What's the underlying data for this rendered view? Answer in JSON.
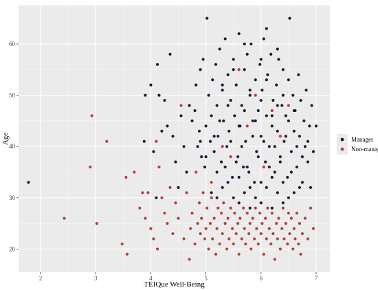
{
  "chart_data": {
    "type": "scatter",
    "xlabel": "TEIQue Well-Being",
    "ylabel": "Age",
    "xlim": [
      1.6,
      7.25
    ],
    "ylim": [
      15.5,
      67.5
    ],
    "x_ticks": [
      2,
      3,
      4,
      5,
      6,
      7
    ],
    "y_ticks": [
      20,
      30,
      40,
      50,
      60
    ],
    "x_tick_labels": [
      "2",
      "3",
      "4",
      "5",
      "6",
      "7"
    ],
    "y_tick_labels": [
      "20",
      "30",
      "40",
      "50",
      "60"
    ],
    "grid": true,
    "legend_position": "right",
    "background_color": "#ebebeb",
    "grid_color": "#ffffff",
    "series": [
      {
        "name": "Manager",
        "color": "#1c1c3a",
        "points": [
          [
            1.78,
            33
          ],
          [
            3.88,
            41
          ],
          [
            3.9,
            50
          ],
          [
            4.0,
            52
          ],
          [
            4.05,
            39
          ],
          [
            4.1,
            30
          ],
          [
            4.12,
            56
          ],
          [
            4.15,
            50
          ],
          [
            4.2,
            43
          ],
          [
            4.25,
            49
          ],
          [
            4.3,
            44
          ],
          [
            4.35,
            58
          ],
          [
            4.4,
            42
          ],
          [
            4.45,
            37
          ],
          [
            4.5,
            32
          ],
          [
            4.55,
            46
          ],
          [
            4.6,
            40
          ],
          [
            4.65,
            35
          ],
          [
            4.7,
            48
          ],
          [
            4.75,
            45
          ],
          [
            4.8,
            47
          ],
          [
            4.82,
            52
          ],
          [
            4.85,
            40
          ],
          [
            4.88,
            43
          ],
          [
            4.9,
            55
          ],
          [
            4.92,
            38
          ],
          [
            4.95,
            57
          ],
          [
            4.98,
            36
          ],
          [
            5.0,
            44
          ],
          [
            5.02,
            65
          ],
          [
            5.05,
            50
          ],
          [
            5.08,
            41
          ],
          [
            5.1,
            46
          ],
          [
            5.12,
            53
          ],
          [
            5.15,
            39
          ],
          [
            5.18,
            56
          ],
          [
            5.2,
            48
          ],
          [
            5.22,
            42
          ],
          [
            5.25,
            59
          ],
          [
            5.28,
            37
          ],
          [
            5.3,
            51
          ],
          [
            5.32,
            45
          ],
          [
            5.35,
            61
          ],
          [
            5.38,
            40
          ],
          [
            5.4,
            54
          ],
          [
            5.42,
            43
          ],
          [
            5.45,
            49
          ],
          [
            5.48,
            34
          ],
          [
            5.5,
            57
          ],
          [
            5.52,
            46
          ],
          [
            5.55,
            52
          ],
          [
            5.58,
            38
          ],
          [
            5.6,
            62
          ],
          [
            5.62,
            44
          ],
          [
            5.65,
            48
          ],
          [
            5.68,
            36
          ],
          [
            5.7,
            55
          ],
          [
            5.72,
            41
          ],
          [
            5.75,
            58
          ],
          [
            5.78,
            35
          ],
          [
            5.8,
            50
          ],
          [
            5.82,
            60
          ],
          [
            5.85,
            45
          ],
          [
            5.88,
            33
          ],
          [
            5.9,
            53
          ],
          [
            5.92,
            39
          ],
          [
            5.95,
            47
          ],
          [
            5.98,
            56
          ],
          [
            6.0,
            42
          ],
          [
            6.02,
            51
          ],
          [
            6.05,
            61
          ],
          [
            6.08,
            37
          ],
          [
            6.1,
            46
          ],
          [
            6.12,
            54
          ],
          [
            6.15,
            40
          ],
          [
            6.18,
            58
          ],
          [
            6.2,
            44
          ],
          [
            6.22,
            49
          ],
          [
            6.25,
            35
          ],
          [
            6.28,
            52
          ],
          [
            6.3,
            43
          ],
          [
            6.32,
            57
          ],
          [
            6.35,
            38
          ],
          [
            6.38,
            48
          ],
          [
            6.4,
            55
          ],
          [
            6.42,
            41
          ],
          [
            6.45,
            46
          ],
          [
            6.48,
            34
          ],
          [
            6.5,
            53
          ],
          [
            6.52,
            65
          ],
          [
            6.55,
            39
          ],
          [
            6.58,
            50
          ],
          [
            6.6,
            43
          ],
          [
            6.62,
            47
          ],
          [
            6.65,
            36
          ],
          [
            6.68,
            54
          ],
          [
            6.7,
            42
          ],
          [
            6.72,
            49
          ],
          [
            6.75,
            33
          ],
          [
            6.78,
            45
          ],
          [
            6.8,
            40
          ],
          [
            6.82,
            51
          ],
          [
            6.85,
            37
          ],
          [
            6.88,
            44
          ],
          [
            6.9,
            32
          ],
          [
            6.92,
            48
          ],
          [
            6.95,
            39
          ],
          [
            7.0,
            44
          ],
          [
            5.1,
            31
          ],
          [
            5.3,
            32
          ],
          [
            5.5,
            30
          ],
          [
            5.7,
            31
          ],
          [
            5.9,
            30
          ],
          [
            6.1,
            32
          ],
          [
            6.3,
            31
          ],
          [
            6.5,
            30
          ],
          [
            6.7,
            32
          ],
          [
            5.4,
            33
          ],
          [
            5.6,
            34
          ],
          [
            5.8,
            32
          ],
          [
            6.0,
            33
          ],
          [
            6.2,
            34
          ],
          [
            6.4,
            33
          ],
          [
            6.6,
            31
          ],
          [
            5.2,
            35
          ],
          [
            5.0,
            38
          ],
          [
            4.9,
            41
          ],
          [
            5.35,
            36
          ],
          [
            5.55,
            37
          ],
          [
            5.75,
            36
          ],
          [
            5.95,
            38
          ],
          [
            6.15,
            36
          ],
          [
            6.35,
            37
          ],
          [
            6.55,
            35
          ],
          [
            6.75,
            38
          ],
          [
            5.15,
            42
          ],
          [
            5.45,
            41
          ],
          [
            5.65,
            40
          ],
          [
            5.85,
            42
          ],
          [
            6.05,
            41
          ],
          [
            6.25,
            40
          ],
          [
            6.45,
            42
          ],
          [
            6.65,
            40
          ],
          [
            6.85,
            41
          ],
          [
            5.25,
            45
          ],
          [
            5.6,
            44
          ],
          [
            5.9,
            45
          ],
          [
            6.2,
            46
          ],
          [
            6.5,
            45
          ],
          [
            5.4,
            48
          ],
          [
            5.7,
            47
          ],
          [
            6.0,
            49
          ],
          [
            6.3,
            48
          ],
          [
            6.6,
            47
          ],
          [
            5.3,
            52
          ],
          [
            5.8,
            51
          ],
          [
            6.1,
            53
          ],
          [
            6.4,
            50
          ],
          [
            5.5,
            55
          ],
          [
            6.0,
            57
          ],
          [
            6.3,
            59
          ],
          [
            5.7,
            60
          ],
          [
            6.1,
            63
          ],
          [
            5.2,
            30
          ],
          [
            5.6,
            29
          ],
          [
            6.0,
            29
          ],
          [
            6.4,
            29
          ],
          [
            5.8,
            28
          ],
          [
            6.2,
            28
          ]
        ]
      },
      {
        "name": "Non-manager",
        "color": "#b5403a",
        "points": [
          [
            2.43,
            26
          ],
          [
            2.9,
            36
          ],
          [
            2.93,
            46
          ],
          [
            3.02,
            25
          ],
          [
            3.2,
            41
          ],
          [
            3.48,
            21
          ],
          [
            3.55,
            34
          ],
          [
            3.57,
            19
          ],
          [
            3.7,
            35
          ],
          [
            3.8,
            28
          ],
          [
            3.85,
            31
          ],
          [
            3.9,
            26
          ],
          [
            3.95,
            31
          ],
          [
            4.0,
            24
          ],
          [
            4.05,
            22
          ],
          [
            4.1,
            41
          ],
          [
            4.12,
            20
          ],
          [
            4.15,
            36
          ],
          [
            4.2,
            30
          ],
          [
            4.25,
            27
          ],
          [
            4.3,
            25
          ],
          [
            4.35,
            32
          ],
          [
            4.4,
            23
          ],
          [
            4.45,
            29
          ],
          [
            4.5,
            26
          ],
          [
            4.55,
            48
          ],
          [
            4.6,
            22
          ],
          [
            4.65,
            31
          ],
          [
            4.7,
            18
          ],
          [
            4.72,
            24
          ],
          [
            4.75,
            27
          ],
          [
            4.8,
            21
          ],
          [
            4.82,
            35
          ],
          [
            4.85,
            25
          ],
          [
            4.88,
            29
          ],
          [
            4.9,
            23
          ],
          [
            4.92,
            26
          ],
          [
            4.95,
            31
          ],
          [
            4.98,
            22
          ],
          [
            5.0,
            24
          ],
          [
            5.02,
            28
          ],
          [
            5.05,
            20
          ],
          [
            5.08,
            25
          ],
          [
            5.1,
            30
          ],
          [
            5.12,
            22
          ],
          [
            5.15,
            26
          ],
          [
            5.18,
            19
          ],
          [
            5.2,
            24
          ],
          [
            5.22,
            28
          ],
          [
            5.25,
            21
          ],
          [
            5.28,
            27
          ],
          [
            5.3,
            23
          ],
          [
            5.32,
            29
          ],
          [
            5.35,
            25
          ],
          [
            5.38,
            20
          ],
          [
            5.4,
            26
          ],
          [
            5.42,
            22
          ],
          [
            5.45,
            28
          ],
          [
            5.48,
            24
          ],
          [
            5.5,
            21
          ],
          [
            5.52,
            27
          ],
          [
            5.55,
            23
          ],
          [
            5.58,
            25
          ],
          [
            5.6,
            19
          ],
          [
            5.62,
            26
          ],
          [
            5.65,
            22
          ],
          [
            5.68,
            28
          ],
          [
            5.7,
            24
          ],
          [
            5.72,
            21
          ],
          [
            5.75,
            27
          ],
          [
            5.78,
            23
          ],
          [
            5.8,
            25
          ],
          [
            5.82,
            20
          ],
          [
            5.85,
            26
          ],
          [
            5.88,
            22
          ],
          [
            5.9,
            28
          ],
          [
            5.92,
            24
          ],
          [
            5.95,
            21
          ],
          [
            5.98,
            27
          ],
          [
            6.0,
            23
          ],
          [
            6.02,
            25
          ],
          [
            6.05,
            19
          ],
          [
            6.08,
            26
          ],
          [
            6.1,
            22
          ],
          [
            6.12,
            28
          ],
          [
            6.15,
            24
          ],
          [
            6.18,
            21
          ],
          [
            6.2,
            27
          ],
          [
            6.22,
            23
          ],
          [
            6.25,
            18
          ],
          [
            6.28,
            25
          ],
          [
            6.3,
            22
          ],
          [
            6.32,
            26
          ],
          [
            6.35,
            20
          ],
          [
            6.38,
            24
          ],
          [
            6.4,
            28
          ],
          [
            6.42,
            22
          ],
          [
            6.45,
            25
          ],
          [
            6.48,
            21
          ],
          [
            6.5,
            27
          ],
          [
            6.52,
            23
          ],
          [
            6.55,
            26
          ],
          [
            6.58,
            20
          ],
          [
            6.6,
            24
          ],
          [
            6.62,
            22
          ],
          [
            6.65,
            27
          ],
          [
            6.68,
            21
          ],
          [
            6.7,
            25
          ],
          [
            6.72,
            19
          ],
          [
            6.75,
            23
          ],
          [
            6.8,
            26
          ],
          [
            6.85,
            22
          ],
          [
            6.9,
            28
          ],
          [
            6.95,
            24
          ],
          [
            5.6,
            55
          ],
          [
            5.9,
            50
          ],
          [
            6.5,
            48
          ],
          [
            5.3,
            40
          ],
          [
            5.1,
            33
          ],
          [
            6.2,
            47
          ],
          [
            5.75,
            44
          ],
          [
            6.35,
            42
          ],
          [
            5.45,
            38
          ],
          [
            6.05,
            36
          ]
        ]
      }
    ]
  }
}
